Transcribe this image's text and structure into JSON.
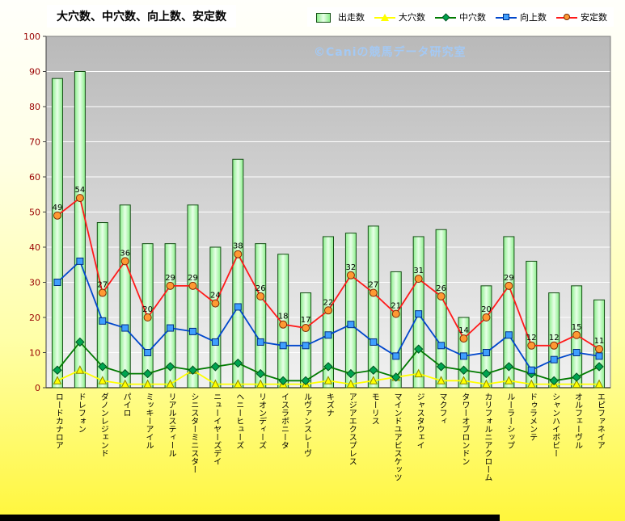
{
  "chart_data": {
    "type": "bar",
    "title": "大穴数、中穴数、向上数、安定数",
    "xlabel": "",
    "ylabel": "",
    "ylim": [
      0,
      100
    ],
    "ytick_interval": 10,
    "grid": true,
    "legend_position": "top",
    "categories": [
      "ロードカナロア",
      "ドレフォン",
      "ダノンレジェンド",
      "パイロ",
      "ミッキーアイル",
      "リアルスティール",
      "シニスターミニスター",
      "ニューイヤーズデイ",
      "ヘニーヒューズ",
      "リオンディーズ",
      "イスラボニータ",
      "ルヴァンスレーヴ",
      "キズナ",
      "アジアエクスプレス",
      "モーリス",
      "マインドユアビスケッツ",
      "ジャスタウェイ",
      "マクフィ",
      "タワーオブロンドン",
      "カリフォルニアクローム",
      "ルーラーシップ",
      "ドゥラメンテ",
      "シャンハイボビー",
      "オルフェーヴル",
      "エピファネイア"
    ],
    "series": [
      {
        "name": "出走数",
        "type": "bar",
        "values": [
          88,
          90,
          47,
          52,
          41,
          41,
          52,
          40,
          65,
          41,
          38,
          27,
          43,
          44,
          46,
          33,
          43,
          45,
          20,
          29,
          43,
          36,
          27,
          29,
          25
        ],
        "fill_light": "#e8ffe8",
        "fill_dark": "#8cef8c",
        "border": "#134d13"
      },
      {
        "name": "大穴数",
        "type": "line",
        "marker": "triangle",
        "values": [
          2,
          5,
          2,
          1,
          1,
          1,
          5,
          1,
          1,
          1,
          1,
          1,
          2,
          1,
          2,
          3,
          4,
          2,
          2,
          1,
          2,
          1,
          1,
          1,
          1
        ],
        "line_color": "#ffff00",
        "marker_color": "#ffff00",
        "marker_stroke": "#8a8a00"
      },
      {
        "name": "中穴数",
        "type": "line",
        "marker": "diamond",
        "values": [
          5,
          13,
          6,
          4,
          4,
          6,
          5,
          6,
          7,
          4,
          2,
          2,
          6,
          4,
          5,
          3,
          11,
          6,
          5,
          4,
          6,
          4,
          2,
          3,
          6
        ],
        "line_color": "#007a00",
        "marker_color": "#00a550",
        "marker_stroke": "#00511f"
      },
      {
        "name": "向上数",
        "type": "line",
        "marker": "square",
        "values": [
          30,
          36,
          19,
          17,
          10,
          17,
          16,
          13,
          23,
          13,
          12,
          12,
          15,
          18,
          13,
          9,
          21,
          12,
          9,
          10,
          15,
          5,
          8,
          10,
          9
        ],
        "line_color": "#0047cc",
        "marker_color": "#3f9fff",
        "marker_stroke": "#002d80"
      },
      {
        "name": "安定数",
        "type": "line",
        "marker": "circle",
        "values": [
          49,
          54,
          27,
          36,
          20,
          29,
          29,
          24,
          38,
          26,
          18,
          17,
          22,
          32,
          27,
          21,
          31,
          26,
          14,
          20,
          29,
          12,
          12,
          15,
          11
        ],
        "line_color": "#ff1a1a",
        "marker_color": "#ff9933",
        "marker_stroke": "#7a2900",
        "data_labels": true
      }
    ]
  },
  "watermark": "©Caniの競馬データ研究室",
  "legend": [
    {
      "label": "出走数",
      "marker": "bar",
      "fill": "#c9fdc9",
      "stroke": "#134d13"
    },
    {
      "label": "大穴数",
      "marker": "triangle",
      "line_color": "#ffff00",
      "fill": "#ffff00",
      "stroke": "#8a8a00"
    },
    {
      "label": "中穴数",
      "marker": "diamond",
      "line_color": "#007a00",
      "fill": "#00a550",
      "stroke": "#00511f"
    },
    {
      "label": "向上数",
      "marker": "square",
      "line_color": "#0047cc",
      "fill": "#3f9fff",
      "stroke": "#002d80"
    },
    {
      "label": "安定数",
      "marker": "circle",
      "line_color": "#ff1a1a",
      "fill": "#ff9933",
      "stroke": "#7a2900"
    }
  ],
  "axis": {
    "ytick_labels": [
      "0",
      "10",
      "20",
      "30",
      "40",
      "50",
      "60",
      "70",
      "80",
      "90",
      "100"
    ],
    "tick_color": "#990000"
  },
  "colors": {
    "plot_bg_top": "#b9b9b9",
    "plot_bg_bottom": "#f1f1f1",
    "grid": "#ffffff",
    "page_bg_bottom": "#fff63c"
  }
}
